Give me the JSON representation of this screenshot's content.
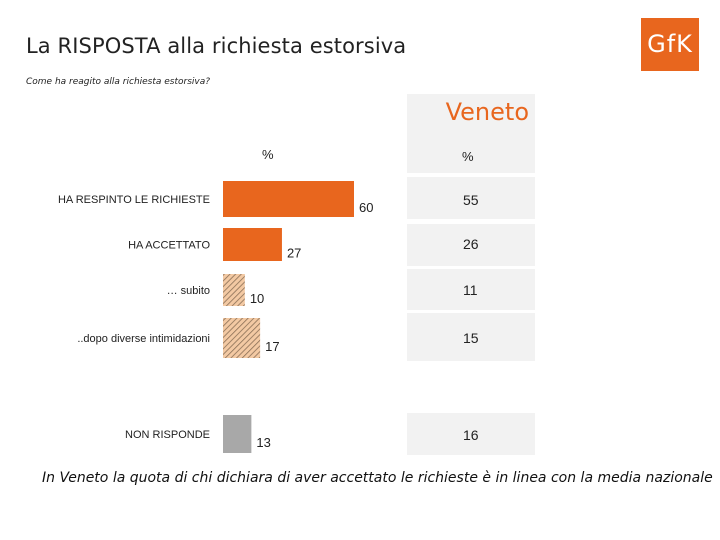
{
  "header": {
    "title": "La RISPOSTA alla richiesta estorsiva",
    "subtitle": "Come ha reagito alla richiesta estorsiva?",
    "logo_text": "GfK"
  },
  "colors": {
    "accent": "#e8661e",
    "solid_bar": "#e8661e",
    "hatched_bar_fg": "#8a6f56",
    "hatched_bar_bg": "#f3c9a3",
    "gray_bar": "#a8a8a8",
    "panel_bg": "#f2f2f2"
  },
  "chart_data": {
    "type": "bar",
    "orientation": "horizontal",
    "unit_label": "%",
    "categories": [
      "HA RESPINTO LE RICHIESTE",
      "HA ACCETTATO",
      "… subito",
      "..dopo diverse intimidazioni",
      "NON RISPONDE"
    ],
    "values": [
      60,
      27,
      10,
      17,
      13
    ],
    "styles": [
      "solid",
      "solid",
      "hatched",
      "hatched",
      "gray"
    ],
    "xlim": [
      0,
      60
    ],
    "grid": false,
    "legend": "none",
    "comparison": {
      "title": "Veneto",
      "unit_label": "%",
      "values": [
        55,
        26,
        11,
        15,
        16
      ]
    }
  },
  "footer": {
    "note": "In Veneto la quota di chi dichiara di aver accettato  le richieste è in linea con la media nazionale"
  }
}
